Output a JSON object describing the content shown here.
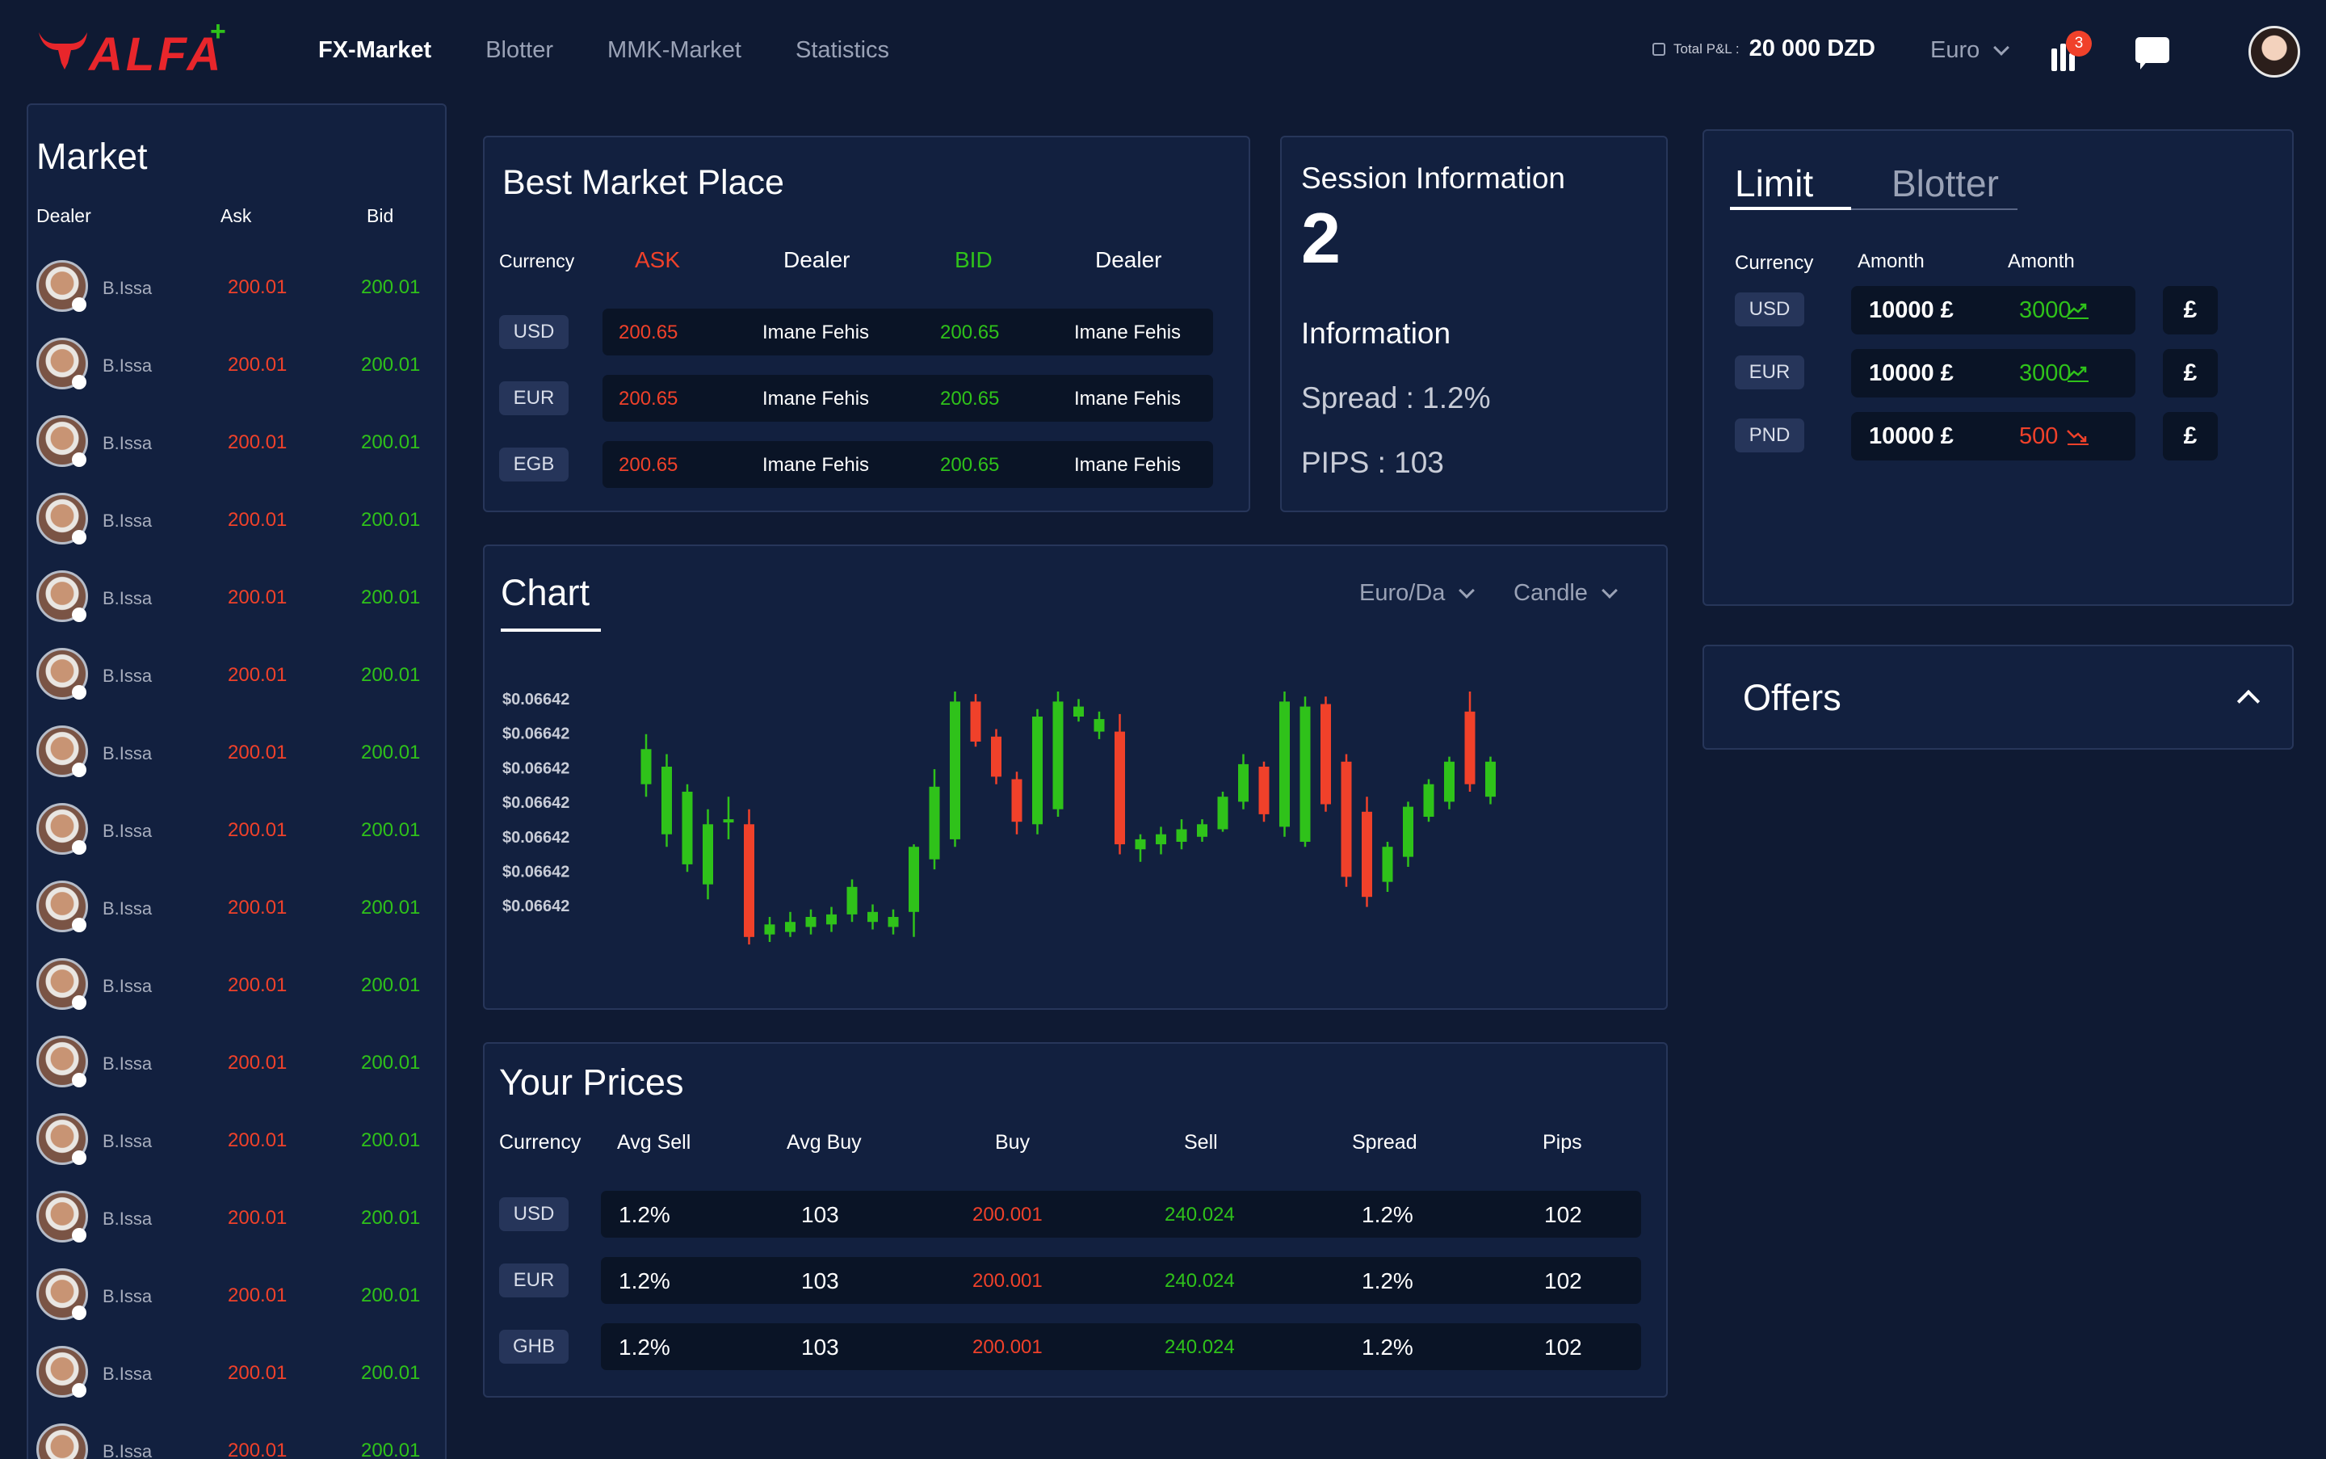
{
  "brand": {
    "logo_text": "ALFA",
    "logo_plus": "+"
  },
  "nav": {
    "items": [
      {
        "label": "FX-Market",
        "active": true
      },
      {
        "label": "Blotter",
        "active": false
      },
      {
        "label": "MMK-Market",
        "active": false
      },
      {
        "label": "Statistics",
        "active": false
      }
    ]
  },
  "header": {
    "total_pl_label": "Total P&L :",
    "total_pl_value": "20 000 DZD",
    "currency": "Euro",
    "notification_count": "3"
  },
  "colors": {
    "background": "#0f1a33",
    "panel": "#12203f",
    "ask": "#f0412a",
    "bid": "#2fc21a",
    "pill": "#26355a",
    "bar": "#0a1426"
  },
  "market": {
    "title": "Market",
    "headers": {
      "dealer": "Dealer",
      "ask": "Ask",
      "bid": "Bid"
    },
    "rows": [
      {
        "dealer": "B.Issa",
        "ask": "200.01",
        "bid": "200.01"
      },
      {
        "dealer": "B.Issa",
        "ask": "200.01",
        "bid": "200.01"
      },
      {
        "dealer": "B.Issa",
        "ask": "200.01",
        "bid": "200.01"
      },
      {
        "dealer": "B.Issa",
        "ask": "200.01",
        "bid": "200.01"
      },
      {
        "dealer": "B.Issa",
        "ask": "200.01",
        "bid": "200.01"
      },
      {
        "dealer": "B.Issa",
        "ask": "200.01",
        "bid": "200.01"
      },
      {
        "dealer": "B.Issa",
        "ask": "200.01",
        "bid": "200.01"
      },
      {
        "dealer": "B.Issa",
        "ask": "200.01",
        "bid": "200.01"
      },
      {
        "dealer": "B.Issa",
        "ask": "200.01",
        "bid": "200.01"
      },
      {
        "dealer": "B.Issa",
        "ask": "200.01",
        "bid": "200.01"
      },
      {
        "dealer": "B.Issa",
        "ask": "200.01",
        "bid": "200.01"
      },
      {
        "dealer": "B.Issa",
        "ask": "200.01",
        "bid": "200.01"
      },
      {
        "dealer": "B.Issa",
        "ask": "200.01",
        "bid": "200.01"
      },
      {
        "dealer": "B.Issa",
        "ask": "200.01",
        "bid": "200.01"
      },
      {
        "dealer": "B.Issa",
        "ask": "200.01",
        "bid": "200.01"
      },
      {
        "dealer": "B.Issa",
        "ask": "200.01",
        "bid": "200.01"
      }
    ]
  },
  "best_market": {
    "title": "Best Market Place",
    "headers": {
      "currency": "Currency",
      "ask": "ASK",
      "dealer1": "Dealer",
      "bid": "BID",
      "dealer2": "Dealer"
    },
    "rows": [
      {
        "currency": "USD",
        "ask": "200.65",
        "ask_dealer": "Imane Fehis",
        "bid": "200.65",
        "bid_dealer": "Imane Fehis"
      },
      {
        "currency": "EUR",
        "ask": "200.65",
        "ask_dealer": "Imane Fehis",
        "bid": "200.65",
        "bid_dealer": "Imane Fehis"
      },
      {
        "currency": "EGB",
        "ask": "200.65",
        "ask_dealer": "Imane Fehis",
        "bid": "200.65",
        "bid_dealer": "Imane Fehis"
      }
    ]
  },
  "session": {
    "title": "Session Information",
    "number": "2",
    "info_title": "Information",
    "spread": "Spread : 1.2%",
    "pips": "PIPS : 103"
  },
  "chart": {
    "title": "Chart",
    "pair_select": "Euro/Da",
    "type_select": "Candle"
  },
  "chart_data": {
    "type": "candlestick",
    "title": "Chart",
    "y_tick_labels": [
      "$0.06642",
      "$0.06642",
      "$0.06642",
      "$0.06642",
      "$0.06642",
      "$0.06642",
      "$0.06642"
    ],
    "ylim": [
      0,
      100
    ],
    "candles": [
      {
        "dir": "up",
        "open": 63,
        "close": 77,
        "low": 58,
        "high": 83
      },
      {
        "dir": "up",
        "open": 43,
        "close": 70,
        "low": 38,
        "high": 75
      },
      {
        "dir": "up",
        "open": 31,
        "close": 60,
        "low": 28,
        "high": 63
      },
      {
        "dir": "up",
        "open": 23,
        "close": 47,
        "low": 17,
        "high": 53
      },
      {
        "dir": "up",
        "open": 48,
        "close": 49,
        "low": 41,
        "high": 58
      },
      {
        "dir": "down",
        "open": 47,
        "close": 2,
        "low": -1,
        "high": 53
      },
      {
        "dir": "up",
        "open": 3,
        "close": 7,
        "low": 0,
        "high": 10
      },
      {
        "dir": "up",
        "open": 4,
        "close": 8,
        "low": 2,
        "high": 12
      },
      {
        "dir": "up",
        "open": 6,
        "close": 10,
        "low": 3,
        "high": 13
      },
      {
        "dir": "up",
        "open": 7,
        "close": 11,
        "low": 4,
        "high": 14
      },
      {
        "dir": "up",
        "open": 11,
        "close": 22,
        "low": 8,
        "high": 25
      },
      {
        "dir": "up",
        "open": 8,
        "close": 12,
        "low": 5,
        "high": 15
      },
      {
        "dir": "up",
        "open": 6,
        "close": 10,
        "low": 3,
        "high": 13
      },
      {
        "dir": "up",
        "open": 12,
        "close": 38,
        "low": 2,
        "high": 39
      },
      {
        "dir": "up",
        "open": 33,
        "close": 62,
        "low": 29,
        "high": 69
      },
      {
        "dir": "up",
        "open": 41,
        "close": 96,
        "low": 38,
        "high": 100
      },
      {
        "dir": "down",
        "open": 96,
        "close": 80,
        "low": 78,
        "high": 99
      },
      {
        "dir": "down",
        "open": 82,
        "close": 66,
        "low": 63,
        "high": 85
      },
      {
        "dir": "down",
        "open": 65,
        "close": 48,
        "low": 43,
        "high": 68
      },
      {
        "dir": "up",
        "open": 47,
        "close": 90,
        "low": 43,
        "high": 93
      },
      {
        "dir": "up",
        "open": 53,
        "close": 96,
        "low": 50,
        "high": 100
      },
      {
        "dir": "up",
        "open": 90,
        "close": 94,
        "low": 88,
        "high": 97
      },
      {
        "dir": "up",
        "open": 84,
        "close": 89,
        "low": 81,
        "high": 92
      },
      {
        "dir": "down",
        "open": 84,
        "close": 39,
        "low": 35,
        "high": 91
      },
      {
        "dir": "up",
        "open": 37,
        "close": 41,
        "low": 32,
        "high": 43
      },
      {
        "dir": "up",
        "open": 39,
        "close": 43,
        "low": 35,
        "high": 46
      },
      {
        "dir": "up",
        "open": 40,
        "close": 45,
        "low": 37,
        "high": 49
      },
      {
        "dir": "up",
        "open": 42,
        "close": 47,
        "low": 40,
        "high": 49
      },
      {
        "dir": "up",
        "open": 45,
        "close": 58,
        "low": 44,
        "high": 60
      },
      {
        "dir": "up",
        "open": 56,
        "close": 71,
        "low": 53,
        "high": 75
      },
      {
        "dir": "down",
        "open": 70,
        "close": 51,
        "low": 48,
        "high": 72
      },
      {
        "dir": "up",
        "open": 46,
        "close": 96,
        "low": 42,
        "high": 100
      },
      {
        "dir": "up",
        "open": 40,
        "close": 94,
        "low": 38,
        "high": 98
      },
      {
        "dir": "down",
        "open": 95,
        "close": 55,
        "low": 52,
        "high": 98
      },
      {
        "dir": "down",
        "open": 72,
        "close": 26,
        "low": 22,
        "high": 75
      },
      {
        "dir": "down",
        "open": 52,
        "close": 18,
        "low": 14,
        "high": 58
      },
      {
        "dir": "up",
        "open": 24,
        "close": 38,
        "low": 20,
        "high": 40
      },
      {
        "dir": "up",
        "open": 34,
        "close": 54,
        "low": 30,
        "high": 56
      },
      {
        "dir": "up",
        "open": 50,
        "close": 63,
        "low": 48,
        "high": 65
      },
      {
        "dir": "up",
        "open": 56,
        "close": 72,
        "low": 53,
        "high": 74
      },
      {
        "dir": "down",
        "open": 92,
        "close": 63,
        "low": 60,
        "high": 100
      },
      {
        "dir": "up",
        "open": 58,
        "close": 72,
        "low": 55,
        "high": 74
      }
    ]
  },
  "your_prices": {
    "title": "Your Prices",
    "headers": {
      "currency": "Currency",
      "avg_sell": "Avg Sell",
      "avg_buy": "Avg Buy",
      "buy": "Buy",
      "sell": "Sell",
      "spread": "Spread",
      "pips": "Pips"
    },
    "rows": [
      {
        "currency": "USD",
        "avg_sell": "1.2%",
        "avg_buy": "103",
        "buy": "200.001",
        "sell": "240.024",
        "spread": "1.2%",
        "pips": "102"
      },
      {
        "currency": "EUR",
        "avg_sell": "1.2%",
        "avg_buy": "103",
        "buy": "200.001",
        "sell": "240.024",
        "spread": "1.2%",
        "pips": "102"
      },
      {
        "currency": "GHB",
        "avg_sell": "1.2%",
        "avg_buy": "103",
        "buy": "200.001",
        "sell": "240.024",
        "spread": "1.2%",
        "pips": "102"
      }
    ]
  },
  "limit": {
    "tabs": [
      {
        "label": "Limit",
        "active": true
      },
      {
        "label": "Blotter",
        "active": false
      }
    ],
    "headers": {
      "currency": "Currency",
      "amount1": "Amonth",
      "amount2": "Amonth"
    },
    "rows": [
      {
        "currency": "USD",
        "amount": "10000 £",
        "limit": "3000",
        "trend": "up",
        "symbol": "£"
      },
      {
        "currency": "EUR",
        "amount": "10000 £",
        "limit": "3000",
        "trend": "up",
        "symbol": "£"
      },
      {
        "currency": "PND",
        "amount": "10000 £",
        "limit": "500",
        "trend": "down",
        "symbol": "£"
      }
    ]
  },
  "offers": {
    "title": "Offers"
  }
}
